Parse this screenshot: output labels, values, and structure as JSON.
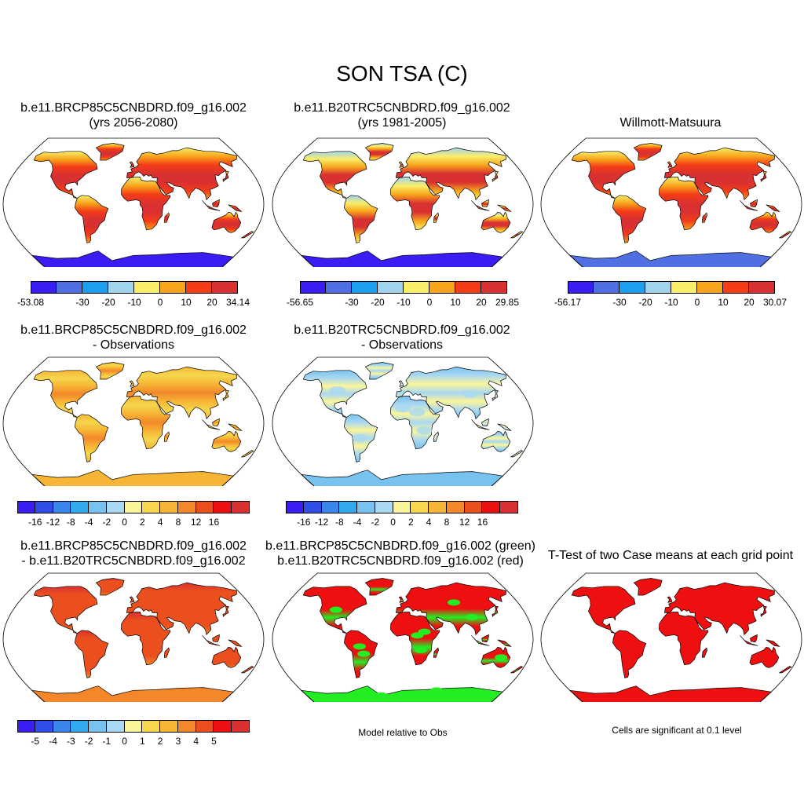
{
  "title": "SON TSA (C)",
  "colors": {
    "abs": [
      "#3a1df2",
      "#4f6fe3",
      "#1aa0ee",
      "#9fd3ee",
      "#f9ee6a",
      "#f8a51b",
      "#f43c17",
      "#d93131"
    ],
    "anom": [
      "#3a1df2",
      "#2f4ee8",
      "#3a86ec",
      "#33a9ef",
      "#78c2ef",
      "#a9d8f2",
      "#fbf59a",
      "#f6d74d",
      "#f7b535",
      "#f3872a",
      "#ea4f1d",
      "#ee1010",
      "#d93131"
    ],
    "diff": [
      "#3a1df2",
      "#2f4ee8",
      "#3a86ec",
      "#33a9ef",
      "#78c2ef",
      "#a9d8f2",
      "#fbf59a",
      "#f6d74d",
      "#f7b535",
      "#f3872a",
      "#ea4f1d",
      "#ee1010",
      "#d93131"
    ]
  },
  "panels": [
    {
      "id": "p1",
      "title1": "b.e11.BRCP85C5CNBDRD.f09_g16.002",
      "title2": "(yrs 2056-2080)",
      "fill": "warm_abs"
    },
    {
      "id": "p2",
      "title1": "b.e11.B20TRC5CNBDRD.f09_g16.002",
      "title2": "(yrs 1981-2005)",
      "fill": "warm_abs2"
    },
    {
      "id": "p3",
      "title1": "",
      "title2": "Willmott-Matsuura",
      "fill": "warm_abs3"
    },
    {
      "id": "p4",
      "title1": "b.e11.BRCP85C5CNBDRD.f09_g16.002",
      "title2": "- Observations",
      "fill": "anom_warm"
    },
    {
      "id": "p5",
      "title1": "b.e11.B20TRC5CNBDRD.f09_g16.002",
      "title2": "- Observations",
      "fill": "anom_cool"
    },
    {
      "id": "p7",
      "title1": "b.e11.BRCP85C5CNBDRD.f09_g16.002",
      "title2": "- b.e11.B20TRC5CNBDRD.f09_g16.002",
      "fill": "diff"
    },
    {
      "id": "p8",
      "title1": "b.e11.BRCP85C5CNBDRD.f09_g16.002 (green)",
      "title2": "b.e11.B20TRC5CNBDRD.f09_g16.002 (red)",
      "fill": "green_red"
    },
    {
      "id": "p9",
      "title1": "T-Test of two Case means at each grid point",
      "title2": "",
      "fill": "ttest"
    }
  ],
  "colorbars": [
    {
      "id": "cb1",
      "min": "-53.08",
      "ticks": [
        "-30",
        "-20",
        "-10",
        "0",
        "10",
        "20"
      ],
      "max": "34.14"
    },
    {
      "id": "cb2",
      "min": "-56.65",
      "ticks": [
        "-30",
        "-20",
        "-10",
        "0",
        "10",
        "20"
      ],
      "max": "29.85"
    },
    {
      "id": "cb3",
      "min": "-56.17",
      "ticks": [
        "-30",
        "-20",
        "-10",
        "0",
        "10",
        "20"
      ],
      "max": "30.07"
    },
    {
      "id": "cb4",
      "ticks": [
        "-16",
        "-12",
        "-8",
        "-4",
        "-2",
        "0",
        "2",
        "4",
        "8",
        "12",
        "16"
      ]
    },
    {
      "id": "cb5",
      "ticks": [
        "-16",
        "-12",
        "-8",
        "-4",
        "-2",
        "0",
        "2",
        "4",
        "8",
        "12",
        "16"
      ]
    },
    {
      "id": "cb7",
      "ticks": [
        "-5",
        "-4",
        "-3",
        "-2",
        "-1",
        "0",
        "1",
        "2",
        "3",
        "4",
        "5"
      ]
    }
  ],
  "notes": {
    "model_rel_obs": "Model relative to Obs",
    "significance": "Cells are significant at 0.1 level"
  }
}
